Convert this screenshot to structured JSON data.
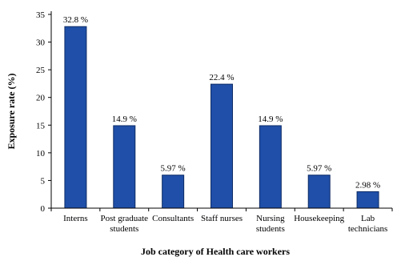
{
  "chart_data": {
    "type": "bar",
    "categories": [
      [
        "Interns"
      ],
      [
        "Post graduate",
        "students"
      ],
      [
        "Consultants"
      ],
      [
        "Staff nurses"
      ],
      [
        "Nursing",
        "students"
      ],
      [
        "Housekeeping"
      ],
      [
        "Lab",
        "technicians"
      ]
    ],
    "values": [
      32.8,
      14.9,
      5.97,
      22.4,
      14.9,
      5.97,
      2.98
    ],
    "data_labels": [
      "32.8 %",
      "14.9 %",
      "5.97 %",
      "22.4 %",
      "14.9 %",
      "5.97 %",
      "2.98 %"
    ],
    "xlabel": "Job category of Health care workers",
    "ylabel": "Exposure rate (%)",
    "ylim": [
      0,
      35
    ],
    "yticks": [
      0,
      5,
      10,
      15,
      20,
      25,
      30,
      35
    ],
    "grid": false,
    "legend": "none",
    "colors": {
      "bar": "#1f4fa8",
      "bar_stroke": "#0e2c66",
      "axis": "#000000"
    }
  }
}
